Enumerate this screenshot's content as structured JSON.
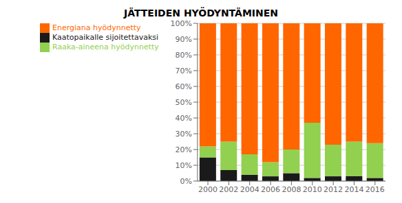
{
  "chart_data": {
    "type": "bar",
    "title": "JÄTTEIDEN HYÖDYNTÄMINEN",
    "categories": [
      "2000",
      "2002",
      "2004",
      "2006",
      "2008",
      "2010",
      "2012",
      "2014",
      "2016"
    ],
    "series": [
      {
        "name": "Kaatopaikalle sijoitettavaksi",
        "color": "#1a1a1a",
        "values": [
          0.15,
          0.07,
          0.04,
          0.03,
          0.05,
          0.02,
          0.03,
          0.03,
          0.02
        ]
      },
      {
        "name": "Raaka-aineena hyödynnetty",
        "color": "#92d050",
        "values": [
          0.07,
          0.18,
          0.13,
          0.09,
          0.15,
          0.35,
          0.2,
          0.22,
          0.22
        ]
      },
      {
        "name": "Energiana hyödynnetty",
        "color": "#ff6600",
        "values": [
          0.78,
          0.75,
          0.83,
          0.88,
          0.8,
          0.63,
          0.77,
          0.75,
          0.76
        ]
      }
    ],
    "stacked": true,
    "ylim": [
      0,
      1.0
    ],
    "yticks": [
      {
        "value": 0,
        "label": "0%"
      },
      {
        "value": 0.1,
        "label": "10%"
      },
      {
        "value": 0.2,
        "label": "20%"
      },
      {
        "value": 0.3,
        "label": "30%"
      },
      {
        "value": 0.4,
        "label": "40%"
      },
      {
        "value": 0.5,
        "label": "50%"
      },
      {
        "value": 0.6,
        "label": "60%"
      },
      {
        "value": 0.7,
        "label": "70%"
      },
      {
        "value": 0.8,
        "label": "80%"
      },
      {
        "value": 0.9,
        "label": "90%"
      },
      {
        "value": 1.0,
        "label": "100%"
      }
    ],
    "grid": true,
    "legend": "upper left"
  }
}
